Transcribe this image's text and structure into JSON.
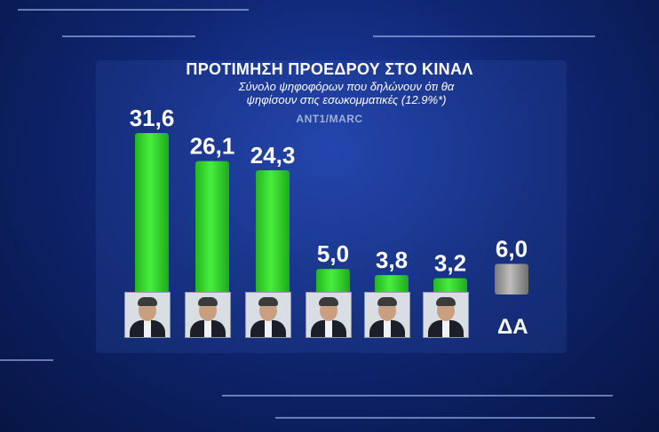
{
  "chart_data": {
    "type": "bar",
    "title": "ΠΡΟΤΙΜΗΣΗ ΠΡΟΕΔΡΟΥ ΣΤΟ ΚΙΝΑΛ",
    "subtitle": "Σύνολο ψηφοφόρων που δηλώνουν ότι θα ψηφίσουν στις εσωκομματικές (12.9%*)",
    "source": "ANT1/MARC",
    "categories": [
      "candidate-1",
      "candidate-2",
      "candidate-3",
      "candidate-4",
      "candidate-5",
      "candidate-6",
      "ΔΑ"
    ],
    "values": [
      31.6,
      26.1,
      24.3,
      5.0,
      3.8,
      3.2,
      6.0
    ],
    "value_labels": [
      "31,6",
      "26,1",
      "24,3",
      "5,0",
      "3,8",
      "3,2",
      "6,0"
    ],
    "bar_colors": [
      "#35d82e",
      "#35d82e",
      "#35d82e",
      "#35d82e",
      "#35d82e",
      "#35d82e",
      "#9a9a9a"
    ],
    "ylim": [
      0,
      31.6
    ],
    "grid": false,
    "legend": "none",
    "da_label": "ΔΑ"
  }
}
